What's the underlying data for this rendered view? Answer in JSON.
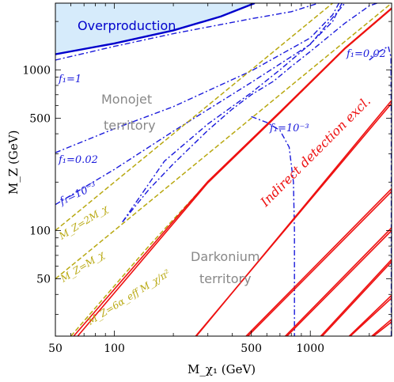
{
  "chart_data": {
    "type": "line",
    "xscale": "log",
    "yscale": "log",
    "xlim": [
      50,
      2600
    ],
    "ylim": [
      22,
      2600
    ],
    "xlabel": "M_χ₁ (GeV)",
    "ylabel": "M_Z (GeV)",
    "x_ticks": [
      {
        "value": 50,
        "label": "50"
      },
      {
        "value": 100,
        "label": "100"
      },
      {
        "value": 500,
        "label": "500"
      },
      {
        "value": 1000,
        "label": "1000"
      }
    ],
    "y_ticks": [
      {
        "value": 50,
        "label": "50"
      },
      {
        "value": 100,
        "label": "100"
      },
      {
        "value": 500,
        "label": "500"
      },
      {
        "value": 1000,
        "label": "1000"
      }
    ],
    "colors": {
      "overproduction_fill": "#d6ebfb",
      "overproduction_line": "#0000cc",
      "blue_dashdot": "#1a1adb",
      "olive_dashed": "#b8a810",
      "red_bands": "#ee1111",
      "monojet_label": "#888888",
      "darkonium_label": "#888888",
      "indirect_label": "#ee1111",
      "overproduction_label": "#0000cc"
    },
    "series": [
      {
        "style": "overproduction_boundary",
        "points": [
          [
            50,
            1250
          ],
          [
            100,
            1460
          ],
          [
            200,
            1760
          ],
          [
            350,
            2150
          ],
          [
            520,
            2600
          ]
        ]
      },
      {
        "style": "blue_dashdot",
        "points": [
          [
            50,
            1150
          ],
          [
            100,
            1400
          ],
          [
            200,
            1680
          ],
          [
            500,
            2080
          ],
          [
            800,
            2300
          ],
          [
            1100,
            2600
          ]
        ]
      },
      {
        "style": "blue_dashdot",
        "points": [
          [
            50,
            305
          ],
          [
            100,
            430
          ],
          [
            200,
            590
          ],
          [
            500,
            985
          ],
          [
            1000,
            1580
          ],
          [
            1300,
            2200
          ],
          [
            1400,
            2600
          ]
        ]
      },
      {
        "style": "blue_dashdot",
        "points": [
          [
            50,
            145
          ],
          [
            100,
            240
          ],
          [
            200,
            415
          ],
          [
            500,
            835
          ],
          [
            1000,
            1440
          ],
          [
            1500,
            2600
          ]
        ]
      },
      {
        "style": "blue_dashdot",
        "points": [
          [
            110,
            113
          ],
          [
            150,
            180
          ],
          [
            200,
            260
          ],
          [
            300,
            420
          ],
          [
            400,
            570
          ],
          [
            500,
            700
          ],
          [
            650,
            850
          ],
          [
            800,
            1050
          ],
          [
            1000,
            1300
          ],
          [
            1500,
            1950
          ],
          [
            2000,
            2500
          ],
          [
            2600,
            2800
          ]
        ]
      },
      {
        "style": "blue_dashdot",
        "points": [
          [
            110,
            113
          ],
          [
            180,
            270
          ],
          [
            300,
            460
          ],
          [
            500,
            720
          ],
          [
            700,
            1000
          ],
          [
            1000,
            1450
          ],
          [
            1300,
            2000
          ],
          [
            1450,
            2600
          ]
        ]
      },
      {
        "style": "blue_dashdot",
        "points": [
          [
            500,
            512
          ],
          [
            600,
            470
          ],
          [
            700,
            420
          ],
          [
            780,
            330
          ],
          [
            820,
            200
          ],
          [
            830,
            100
          ],
          [
            830,
            50
          ],
          [
            830,
            22
          ]
        ]
      },
      {
        "style": "blue_dashdot",
        "points": [
          [
            2000,
            1150
          ],
          [
            2250,
            1300
          ],
          [
            2500,
            1400
          ],
          [
            2580,
            1200
          ],
          [
            2590,
            500
          ],
          [
            2590,
            100
          ],
          [
            2590,
            22
          ]
        ]
      },
      {
        "style": "olive_dashed",
        "points": [
          [
            50,
            100
          ],
          [
            2600,
            5200
          ]
        ]
      },
      {
        "style": "olive_dashed",
        "points": [
          [
            50,
            50
          ],
          [
            2600,
            2600
          ]
        ]
      },
      {
        "style": "olive_dashed",
        "points": [
          [
            60,
            22
          ],
          [
            150,
            80
          ],
          [
            300,
            200
          ],
          [
            700,
            540
          ],
          [
            1500,
            1350
          ],
          [
            2600,
            2400
          ]
        ]
      },
      {
        "style": "red_band",
        "points": [
          [
            65,
            22
          ],
          [
            300,
            198
          ],
          [
            700,
            540
          ],
          [
            1500,
            1350
          ],
          [
            2600,
            2400
          ]
        ]
      },
      {
        "style": "red_band",
        "points": [
          [
            62,
            22
          ],
          [
            300,
            202
          ],
          [
            700,
            548
          ],
          [
            1500,
            1365
          ],
          [
            2600,
            2425
          ]
        ]
      },
      {
        "style": "red_band",
        "points": [
          [
            260,
            22
          ],
          [
            2600,
            620
          ]
        ]
      },
      {
        "style": "red_band",
        "points": [
          [
            262,
            22
          ],
          [
            2600,
            645
          ]
        ]
      },
      {
        "style": "red_band",
        "points": [
          [
            480,
            22
          ],
          [
            2600,
            175
          ]
        ]
      },
      {
        "style": "red_band",
        "points": [
          [
            470,
            22
          ],
          [
            2600,
            182
          ]
        ]
      },
      {
        "style": "red_band",
        "points": [
          [
            760,
            22
          ],
          [
            2600,
            100
          ]
        ]
      },
      {
        "style": "red_band",
        "points": [
          [
            745,
            22
          ],
          [
            2600,
            104
          ]
        ]
      },
      {
        "style": "red_band",
        "points": [
          [
            1150,
            22
          ],
          [
            2600,
            64
          ]
        ]
      },
      {
        "style": "red_band",
        "points": [
          [
            1130,
            22
          ],
          [
            2600,
            66
          ]
        ]
      },
      {
        "style": "red_band",
        "points": [
          [
            1600,
            22
          ],
          [
            2600,
            38
          ]
        ]
      },
      {
        "style": "red_band",
        "points": [
          [
            1580,
            22
          ],
          [
            2600,
            39.5
          ]
        ]
      },
      {
        "style": "red_band",
        "points": [
          [
            2100,
            22
          ],
          [
            2600,
            27
          ]
        ]
      },
      {
        "style": "red_band",
        "points": [
          [
            2060,
            22
          ],
          [
            2600,
            28
          ]
        ]
      }
    ],
    "annotations": {
      "overproduction": "Overproduction",
      "monojet": "Monojet territory",
      "monojet_line1": "Monojet",
      "monojet_line2": "territory",
      "darkonium_line1": "Darkonium",
      "darkonium_line2": "territory",
      "indirect": "Indirect detection excl.",
      "f1_1": "f₁=1",
      "f1_002_left": "f₁=0.02",
      "f1_1e3_left": "f₁=10⁻³",
      "f1_002_right": "f₁=0.02",
      "f1_1e3_mid": "f₁=10⁻³",
      "mz_2mx": "M_Z=2M_χ",
      "mz_mx": "M_Z=M_χ",
      "mz_darkonium": "M_Z=6α_eff M_χ/π²"
    }
  }
}
